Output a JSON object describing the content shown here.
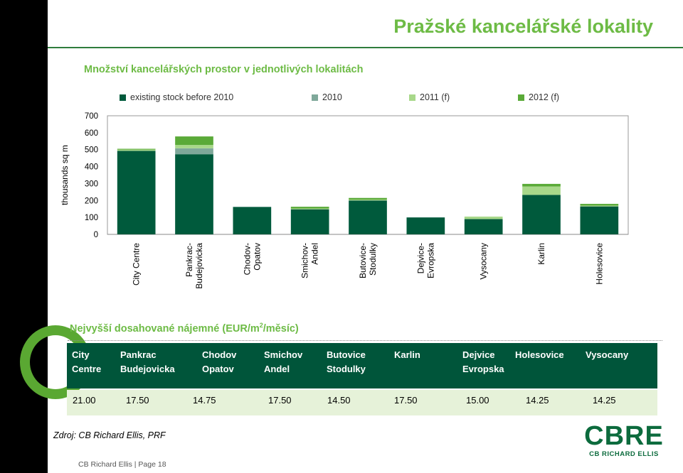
{
  "title": "Pražské kancelářské lokality",
  "subtitle": "Množství kancelářských prostor  v jednotlivých lokalitách",
  "colors": {
    "existing": "#005a3c",
    "y2010": "#7fa89a",
    "y2011": "#a8d88a",
    "y2012": "#5aaa38",
    "accent": "#6dbb45"
  },
  "chart_data": {
    "type": "bar",
    "stacked": true,
    "ylabel": "thousands sq m",
    "ylim": [
      0,
      700
    ],
    "yticks": [
      "0",
      "100",
      "200",
      "300",
      "400",
      "500",
      "600",
      "700"
    ],
    "categories": [
      "City Centre",
      "Pankrac-\nBudejovicka",
      "Chodov-\nOpatov",
      "Smichov-\nAndel",
      "Butovice-\nStodulky",
      "Dejvice-\nEvropska",
      "Vysocany",
      "Karlin",
      "Holesovice"
    ],
    "series": [
      {
        "name": "existing stock before 2010",
        "color": "#005a3c",
        "values": [
          493,
          473,
          162,
          148,
          200,
          100,
          90,
          233,
          165
        ]
      },
      {
        "name": "2010",
        "color": "#7fa89a",
        "values": [
          0,
          35,
          0,
          0,
          0,
          0,
          0,
          0,
          0
        ]
      },
      {
        "name": "2011 (f)",
        "color": "#a8d88a",
        "values": [
          7,
          20,
          0,
          5,
          5,
          0,
          15,
          50,
          5
        ]
      },
      {
        "name": "2012 (f)",
        "color": "#5aaa38",
        "values": [
          5,
          50,
          0,
          10,
          10,
          0,
          0,
          15,
          10
        ]
      }
    ],
    "grid": false,
    "legend_position": "top"
  },
  "rent": {
    "title": "Nejvyšší dosahované nájemné (EUR/m",
    "title_sup": "2",
    "title_end": "/měsíc)",
    "headers": [
      [
        "City",
        "Centre"
      ],
      [
        "Pankrac",
        "Budejovicka"
      ],
      [
        "Chodov",
        "Opatov"
      ],
      [
        "Smichov",
        "Andel"
      ],
      [
        "Butovice",
        "Stodulky"
      ],
      [
        "Karlin",
        ""
      ],
      [
        "Dejvice",
        "Evropska"
      ],
      [
        "Holesovice",
        ""
      ],
      [
        "Vysocany",
        ""
      ]
    ],
    "values": [
      "21.00",
      "17.50",
      "14.75",
      "17.50",
      "14.50",
      "17.50",
      "15.00",
      "14.25",
      "14.25"
    ]
  },
  "source": "Zdroj: CB Richard Ellis, PRF",
  "footer": "CB Richard Ellis | Page 18",
  "logo": {
    "main": "CBRE",
    "sub": "CB RICHARD ELLIS"
  }
}
